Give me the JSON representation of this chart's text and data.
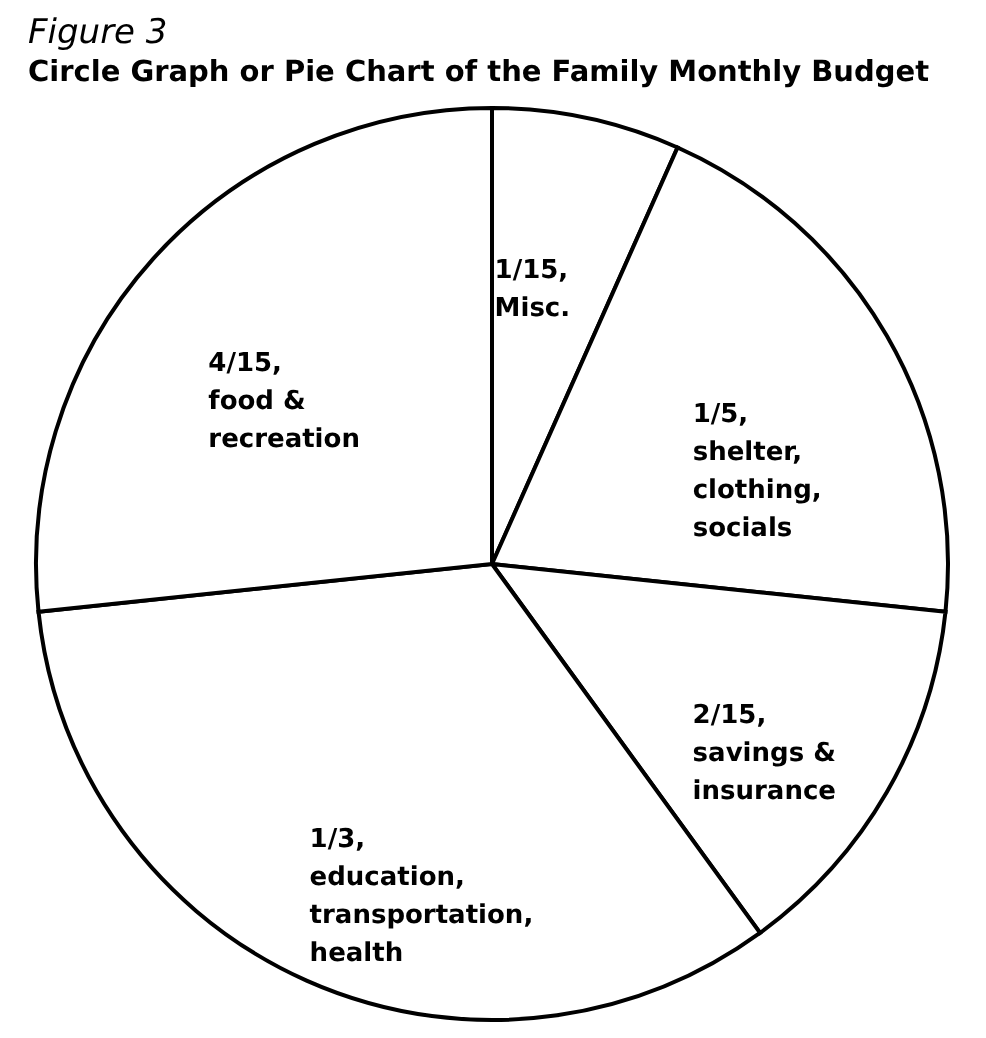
{
  "chart_data": {
    "type": "pie",
    "subtitle": "Figure 3",
    "title": "Circle Graph or Pie Chart of the Family Monthly Budget",
    "categories": [
      "Misc.",
      "shelter, clothing, socials",
      "savings & insurance",
      "education, transportation, health",
      "food & recreation"
    ],
    "values": [
      0.0667,
      0.2,
      0.1333,
      0.3333,
      0.2667
    ],
    "value_labels": [
      "1/15,",
      "1/5,",
      "2/15,",
      "1/3,",
      "4/15,"
    ],
    "colors": [
      "#ffffff",
      "#ffffff",
      "#ffffff",
      "#ffffff",
      "#ffffff"
    ]
  }
}
